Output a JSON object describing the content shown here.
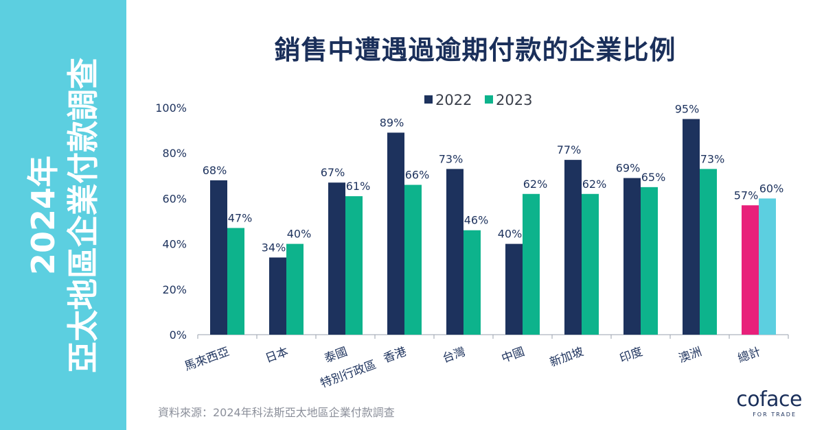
{
  "side_title": {
    "line1": "2024年",
    "line2": "亞太地區企業付款調查"
  },
  "source": "資料來源：2024年科法斯亞太地區企業付款調查",
  "logo": {
    "text": "coface",
    "tagline": "FOR TRADE"
  },
  "colors": {
    "band": "#5ccfe0",
    "series_2022": "#1d325d",
    "series_2023": "#0db38c",
    "total_2022": "#e8207a",
    "total_2023": "#5ccfe0",
    "label": "#1d325d"
  },
  "chart_data": {
    "type": "bar",
    "title": "銷售中遭遇過逾期付款的企業比例",
    "xlabel": "",
    "ylabel": "",
    "ylim": [
      0,
      100
    ],
    "yticks": [
      "0%",
      "20%",
      "40%",
      "60%",
      "80%",
      "100%"
    ],
    "grid": false,
    "legend_position": "top-center",
    "categories": [
      "馬來西亞",
      "日本",
      "泰國",
      "香港特別行政區",
      "台灣",
      "中國",
      "新加坡",
      "印度",
      "澳洲",
      "總計"
    ],
    "series": [
      {
        "name": "2022",
        "values": [
          68,
          34,
          67,
          89,
          73,
          40,
          77,
          69,
          95,
          57
        ],
        "labels": [
          "68%",
          "34%",
          "67%",
          "89%",
          "73%",
          "40%",
          "77%",
          "69%",
          "95%",
          "57%"
        ]
      },
      {
        "name": "2023",
        "values": [
          47,
          40,
          61,
          66,
          46,
          62,
          62,
          65,
          73,
          60
        ],
        "labels": [
          "47%",
          "40%",
          "61%",
          "66%",
          "46%",
          "62%",
          "62%",
          "65%",
          "73%",
          "60%"
        ]
      }
    ]
  }
}
